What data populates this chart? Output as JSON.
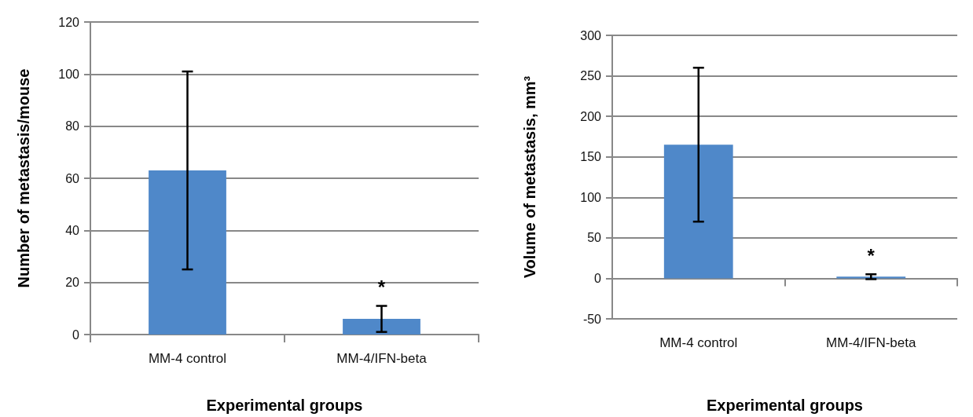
{
  "chart_data": [
    {
      "type": "bar",
      "xlabel": "Experimental groups",
      "ylabel": "Number of metastasis/mouse",
      "categories": [
        "MM-4 control",
        "MM-4/IFN-beta"
      ],
      "series": [
        {
          "color": "#4f88c9",
          "values": [
            63,
            6
          ],
          "errors": [
            38,
            5
          ]
        }
      ],
      "ylim": [
        0,
        120
      ],
      "yticks": [
        0,
        20,
        40,
        60,
        80,
        100,
        120
      ],
      "grid": "y",
      "annotations": [
        "*"
      ]
    },
    {
      "type": "bar",
      "xlabel": "Experimental groups",
      "ylabel": "Volume of metastasis, mm³",
      "categories": [
        "MM-4 control",
        "MM-4/IFN-beta"
      ],
      "series": [
        {
          "color": "#4f88c9",
          "values": [
            165,
            2
          ],
          "errors": [
            95,
            3
          ]
        }
      ],
      "ylim": [
        -50,
        300
      ],
      "yticks": [
        -50,
        0,
        50,
        100,
        150,
        200,
        250,
        300
      ],
      "grid": "y",
      "annotations": [
        "*"
      ]
    }
  ]
}
